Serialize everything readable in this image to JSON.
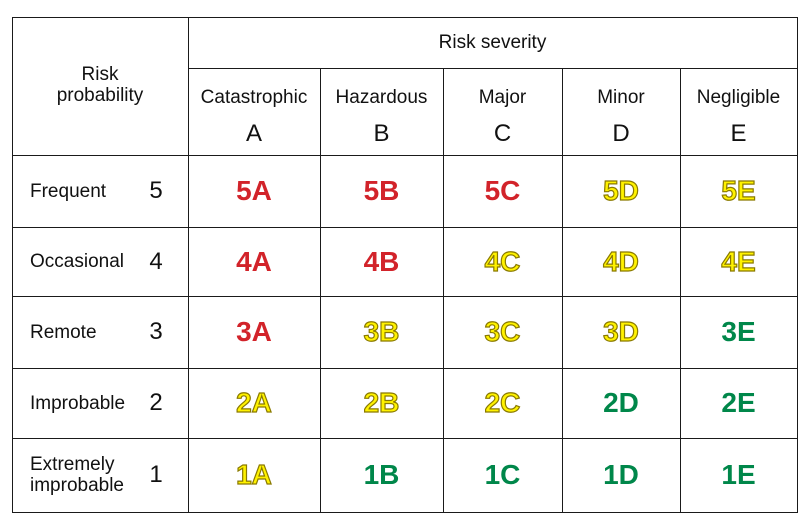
{
  "header": {
    "risk_probability": "Risk\nprobability",
    "risk_severity": "Risk severity"
  },
  "severity_columns": [
    {
      "name": "Catastrophic",
      "letter": "A"
    },
    {
      "name": "Hazardous",
      "letter": "B"
    },
    {
      "name": "Major",
      "letter": "C"
    },
    {
      "name": "Minor",
      "letter": "D"
    },
    {
      "name": "Negligible",
      "letter": "E"
    }
  ],
  "probability_rows": [
    {
      "label": "Frequent",
      "number": "5",
      "cells": [
        {
          "text": "5A",
          "level": "red"
        },
        {
          "text": "5B",
          "level": "red"
        },
        {
          "text": "5C",
          "level": "red"
        },
        {
          "text": "5D",
          "level": "yellow"
        },
        {
          "text": "5E",
          "level": "yellow"
        }
      ]
    },
    {
      "label": "Occasional",
      "number": "4",
      "cells": [
        {
          "text": "4A",
          "level": "red"
        },
        {
          "text": "4B",
          "level": "red"
        },
        {
          "text": "4C",
          "level": "yellow"
        },
        {
          "text": "4D",
          "level": "yellow"
        },
        {
          "text": "4E",
          "level": "yellow"
        }
      ]
    },
    {
      "label": "Remote",
      "number": "3",
      "cells": [
        {
          "text": "3A",
          "level": "red"
        },
        {
          "text": "3B",
          "level": "yellow"
        },
        {
          "text": "3C",
          "level": "yellow"
        },
        {
          "text": "3D",
          "level": "yellow"
        },
        {
          "text": "3E",
          "level": "green"
        }
      ]
    },
    {
      "label": "Improbable",
      "number": "2",
      "cells": [
        {
          "text": "2A",
          "level": "yellow"
        },
        {
          "text": "2B",
          "level": "yellow"
        },
        {
          "text": "2C",
          "level": "yellow"
        },
        {
          "text": "2D",
          "level": "green"
        },
        {
          "text": "2E",
          "level": "green"
        }
      ]
    },
    {
      "label": "Extremely\nimprobable",
      "number": "1",
      "cells": [
        {
          "text": "1A",
          "level": "yellow"
        },
        {
          "text": "1B",
          "level": "green"
        },
        {
          "text": "1C",
          "level": "green"
        },
        {
          "text": "1D",
          "level": "green"
        },
        {
          "text": "1E",
          "level": "green"
        }
      ]
    }
  ],
  "colors": {
    "red": "#d2232a",
    "yellow": "#fff200",
    "green": "#00874a",
    "grid": "#1a1a1a"
  }
}
